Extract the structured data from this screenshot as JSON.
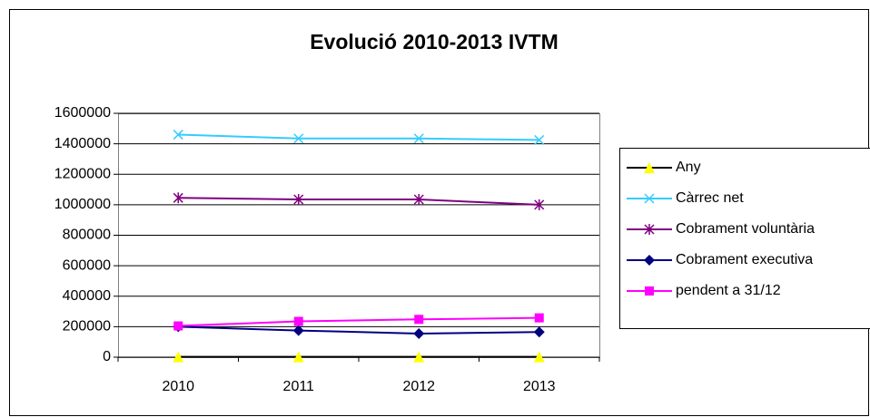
{
  "chart_data": {
    "type": "line",
    "title": "Evolució 2010-2013 IVTM",
    "categories": [
      "2010",
      "2011",
      "2012",
      "2013"
    ],
    "ylim": [
      0,
      1600000
    ],
    "yticks": [
      0,
      200000,
      400000,
      600000,
      800000,
      1000000,
      1200000,
      1400000,
      1600000
    ],
    "grid": true,
    "legend": "right",
    "series": [
      {
        "name": "Any",
        "color": "#000000",
        "marker": "triangle",
        "marker_color": "#ffff00",
        "values": [
          2010,
          2011,
          2012,
          2013
        ]
      },
      {
        "name": "Càrrec net",
        "color": "#33ccff",
        "marker": "x",
        "marker_color": "#33ccff",
        "values": [
          1460000,
          1435000,
          1435000,
          1425000
        ]
      },
      {
        "name": "Cobrament voluntària",
        "color": "#800080",
        "marker": "asterisk",
        "marker_color": "#800080",
        "values": [
          1045000,
          1035000,
          1035000,
          1000000
        ]
      },
      {
        "name": "Cobrament executiva",
        "color": "#000080",
        "marker": "diamond",
        "marker_color": "#000080",
        "values": [
          200000,
          175000,
          155000,
          165000
        ]
      },
      {
        "name": "pendent a 31/12",
        "color": "#ff00ff",
        "marker": "square",
        "marker_color": "#ff00ff",
        "values": [
          205000,
          235000,
          248000,
          258000
        ]
      }
    ]
  }
}
